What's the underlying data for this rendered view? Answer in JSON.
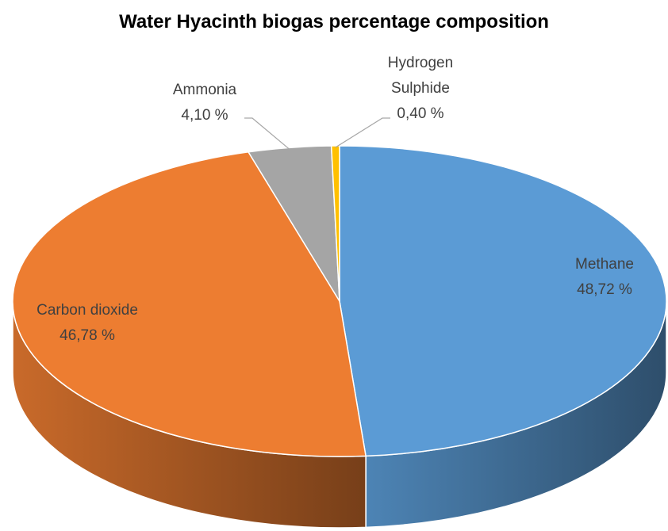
{
  "chart_data": {
    "type": "pie",
    "title": "Water Hyacinth biogas percentage composition",
    "categories": [
      "Methane",
      "Carbon dioxide",
      "Ammonia",
      "Hydrogen Sulphide"
    ],
    "values": [
      48.72,
      46.78,
      4.1,
      0.4
    ],
    "value_labels": [
      "48,72 %",
      "46,78 %",
      "4,10 %",
      "0,40 %"
    ],
    "colors": [
      "#5b9bd5",
      "#ed7d31",
      "#a5a5a5",
      "#ffc000"
    ]
  }
}
